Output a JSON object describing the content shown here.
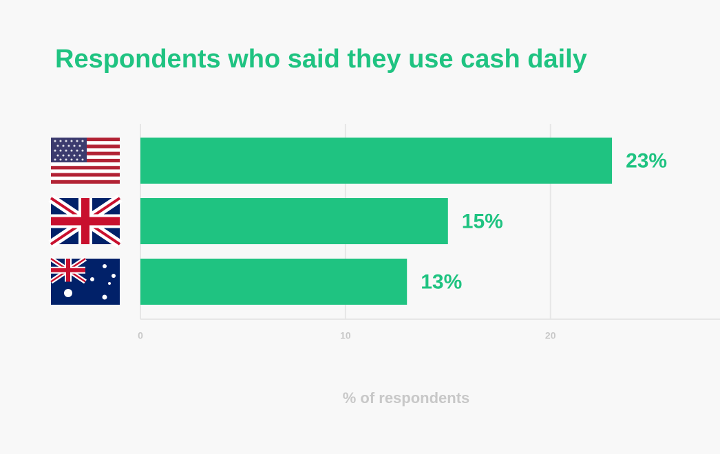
{
  "chart_data": {
    "type": "bar",
    "orientation": "horizontal",
    "title": "Respondents who said they use cash daily",
    "x_label": "% of respondents",
    "categories": [
      null,
      null,
      null
    ],
    "values": [
      23,
      15,
      13
    ],
    "value_labels": [
      "23%",
      "15%",
      "13%"
    ],
    "color": "#1fc381",
    "xlim": [
      0,
      28
    ],
    "xticks": [
      0,
      10,
      20
    ],
    "grid": true
  }
}
